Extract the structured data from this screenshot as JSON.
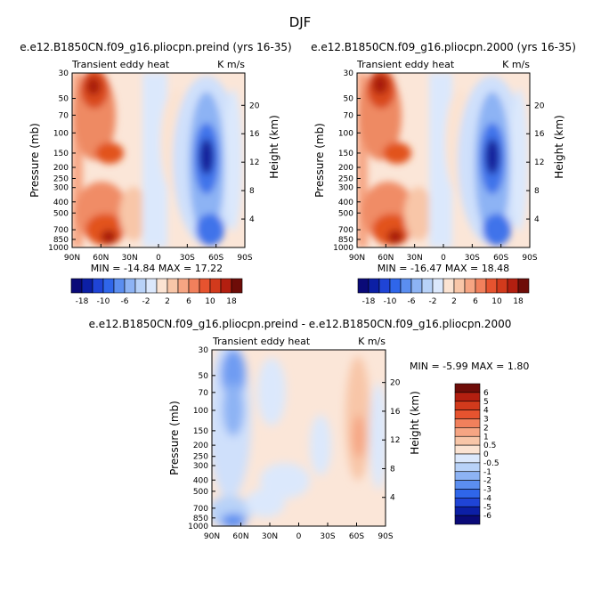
{
  "figure_title": "DJF",
  "colors": {
    "panel_palette": [
      "#0a0a78",
      "#0c1fa5",
      "#1f44d6",
      "#2f66ea",
      "#5b8ef0",
      "#8db3f4",
      "#b8d2f8",
      "#dbe8fc",
      "#fbe3d2",
      "#f8c6a8",
      "#f6a583",
      "#f1805c",
      "#e6532f",
      "#d23a1c",
      "#b31f10",
      "#6e0c08"
    ],
    "diff_palette": [
      "#0a0a78",
      "#0c1fa5",
      "#1f44d6",
      "#2f66ea",
      "#5b8ef0",
      "#8db3f4",
      "#b8d2f8",
      "#dbe8fc",
      "#fbe3d2",
      "#f8c6a8",
      "#f6a583",
      "#f1805c",
      "#e6532f",
      "#d23a1c",
      "#b31f10",
      "#6e0c08"
    ]
  },
  "chart_data": [
    {
      "type": "heatmap",
      "title": "e.e12.B1850CN.f09_g16.pliocpn.preind (yrs 16-35)",
      "left_label": "Transient eddy heat",
      "right_label": "K m/s",
      "xlabel": "",
      "ylabel": "Pressure (mb)",
      "ylabel_right": "Height (km)",
      "xticks": [
        "90N",
        "60N",
        "30N",
        "0",
        "30S",
        "60S",
        "90S"
      ],
      "yticks": [
        "30",
        "50",
        "70",
        "100",
        "150",
        "200",
        "250",
        "300",
        "400",
        "500",
        "700",
        "850",
        "1000"
      ],
      "yticks_right": [
        "20",
        "16",
        "12",
        "8",
        "4"
      ],
      "stats": "MIN = -14.84   MAX = 17.22",
      "colorbar_labels": [
        "-18",
        "-10",
        "-6",
        "-2",
        "2",
        "6",
        "10",
        "18"
      ]
    },
    {
      "type": "heatmap",
      "title": "e.e12.B1850CN.f09_g16.pliocpn.2000 (yrs 16-35)",
      "left_label": "Transient eddy heat",
      "right_label": "K m/s",
      "xlabel": "",
      "ylabel": "Pressure (mb)",
      "ylabel_right": "Height (km)",
      "xticks": [
        "90N",
        "60N",
        "30N",
        "0",
        "30S",
        "60S",
        "90S"
      ],
      "yticks": [
        "30",
        "50",
        "70",
        "100",
        "150",
        "200",
        "250",
        "300",
        "400",
        "500",
        "700",
        "850",
        "1000"
      ],
      "yticks_right": [
        "20",
        "16",
        "12",
        "8",
        "4"
      ],
      "stats": "MIN = -16.47   MAX = 18.48",
      "colorbar_labels": [
        "-18",
        "-10",
        "-6",
        "-2",
        "2",
        "6",
        "10",
        "18"
      ]
    },
    {
      "type": "heatmap",
      "title": "e.e12.B1850CN.f09_g16.pliocpn.preind - e.e12.B1850CN.f09_g16.pliocpn.2000",
      "left_label": "Transient eddy heat",
      "right_label": "K m/s",
      "xlabel": "",
      "ylabel": "Pressure (mb)",
      "ylabel_right": "Height (km)",
      "xticks": [
        "90N",
        "60N",
        "30N",
        "0",
        "30S",
        "60S",
        "90S"
      ],
      "yticks": [
        "30",
        "50",
        "70",
        "100",
        "150",
        "200",
        "250",
        "300",
        "400",
        "500",
        "700",
        "850",
        "1000"
      ],
      "yticks_right": [
        "20",
        "16",
        "12",
        "8",
        "4"
      ],
      "stats": "MIN = -5.99   MAX = 1.80",
      "colorbar_labels": [
        "6",
        "5",
        "4",
        "3",
        "2",
        "1",
        "0.5",
        "0",
        "-0.5",
        "-1",
        "-2",
        "-3",
        "-4",
        "-5",
        "-6"
      ]
    }
  ]
}
